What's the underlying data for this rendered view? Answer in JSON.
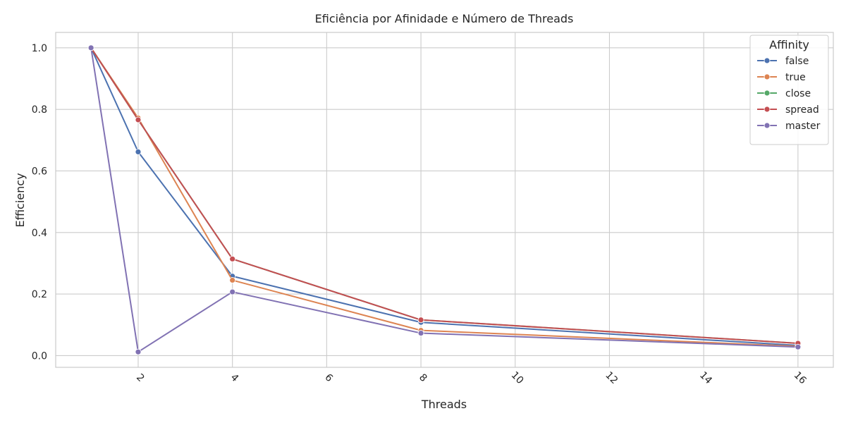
{
  "chart_data": {
    "type": "line",
    "title": "Eficiência por Afinidade e Número de Threads",
    "xlabel": "Threads",
    "ylabel": "Efficiency",
    "xlim": [
      0.25,
      16.75
    ],
    "ylim": [
      -0.038,
      1.05
    ],
    "xticks": [
      2,
      4,
      6,
      8,
      10,
      12,
      14,
      16
    ],
    "yticks": [
      0.0,
      0.2,
      0.4,
      0.6,
      0.8,
      1.0
    ],
    "grid": true,
    "legend_title": "Affinity",
    "legend_position": "top-right",
    "x": [
      1,
      2,
      4,
      8,
      16
    ],
    "series": [
      {
        "name": "false",
        "color": "#4c72b0",
        "values": [
          1.0,
          0.662,
          0.258,
          0.108,
          0.033
        ]
      },
      {
        "name": "true",
        "color": "#dd8452",
        "values": [
          1.0,
          0.772,
          0.245,
          0.082,
          0.03
        ]
      },
      {
        "name": "close",
        "color": "#55a868",
        "values": [
          1.0,
          0.766,
          0.314,
          0.116,
          0.04
        ]
      },
      {
        "name": "spread",
        "color": "#c44e52",
        "values": [
          1.0,
          0.766,
          0.314,
          0.116,
          0.04
        ]
      },
      {
        "name": "master",
        "color": "#8172b3",
        "values": [
          1.0,
          0.012,
          0.207,
          0.073,
          0.028
        ]
      }
    ]
  }
}
